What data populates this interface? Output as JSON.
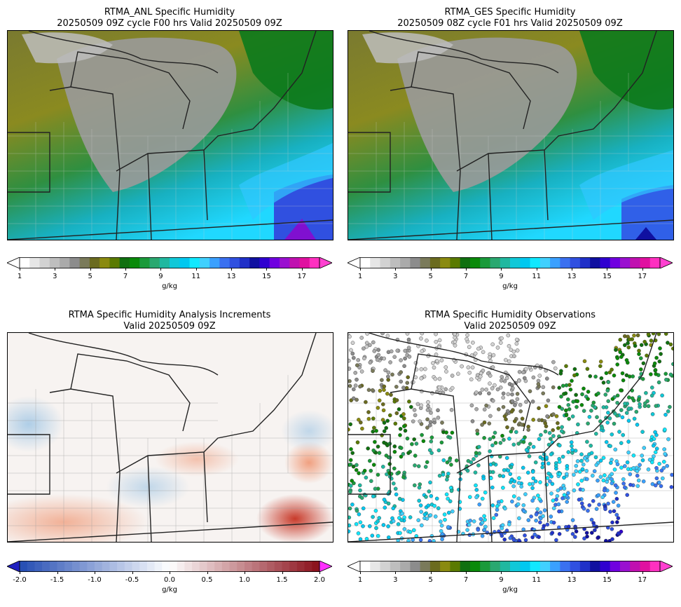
{
  "panels": [
    {
      "title1": "RTMA_ANL Specific Humidity",
      "title2": "20250509 09Z cycle F00 hrs Valid 20250509 09Z"
    },
    {
      "title1": "RTMA_GES Specific Humidity",
      "title2": "20250509 08Z cycle F01 hrs Valid 20250509 09Z"
    },
    {
      "title1": "RTMA Specific Humidity Analysis Increments",
      "title2": "Valid 20250509 09Z"
    },
    {
      "title1": "RTMA Specific Humidity Observations",
      "title2": "Valid 20250509 09Z"
    }
  ],
  "humidity_colorbar": {
    "ticks": [
      "1",
      "3",
      "5",
      "7",
      "9",
      "11",
      "13",
      "15",
      "17"
    ],
    "unit": "g/kg",
    "colors": [
      "#ffffff",
      "#e6e6e6",
      "#d2d2d2",
      "#bebebe",
      "#aaaaaa",
      "#8c8c8c",
      "#7a7a5a",
      "#6b6b1f",
      "#8a8a10",
      "#5a7a00",
      "#107010",
      "#0a8a0a",
      "#1a9a3a",
      "#2aa870",
      "#20b8a0",
      "#10c8d8",
      "#00c8f0",
      "#10e8ff",
      "#40d0ff",
      "#3aa0ff",
      "#3a70f0",
      "#3050e0",
      "#2030c8",
      "#1010a0",
      "#3000d0",
      "#7000e0",
      "#9a10d0",
      "#c010b0",
      "#e010a0",
      "#ff30c0"
    ],
    "over_color": "#ff40d0"
  },
  "increment_colorbar": {
    "ticks": [
      "-2.0",
      "-1.5",
      "-1.0",
      "-0.5",
      "0.0",
      "0.5",
      "1.0",
      "1.5",
      "2.0"
    ],
    "unit": "g/kg",
    "under_color": "#2020c0",
    "over_color": "#ff30ff"
  },
  "chart_data": [
    {
      "type": "heatmap",
      "title": "RTMA_ANL Specific Humidity",
      "subtitle": "20250509 09Z cycle F00 hrs Valid 20250509 09Z",
      "colorbar_range": [
        1,
        18
      ],
      "unit": "g/kg"
    },
    {
      "type": "heatmap",
      "title": "RTMA_GES Specific Humidity",
      "subtitle": "20250509 08Z cycle F01 hrs Valid 20250509 09Z",
      "colorbar_range": [
        1,
        18
      ],
      "unit": "g/kg"
    },
    {
      "type": "heatmap",
      "title": "RTMA Specific Humidity Analysis Increments",
      "subtitle": "Valid 20250509 09Z",
      "colorbar_range": [
        -2.0,
        2.0
      ],
      "unit": "g/kg"
    },
    {
      "type": "scatter",
      "title": "RTMA Specific Humidity Observations",
      "subtitle": "Valid 20250509 09Z",
      "colorbar_range": [
        1,
        18
      ],
      "unit": "g/kg"
    }
  ]
}
